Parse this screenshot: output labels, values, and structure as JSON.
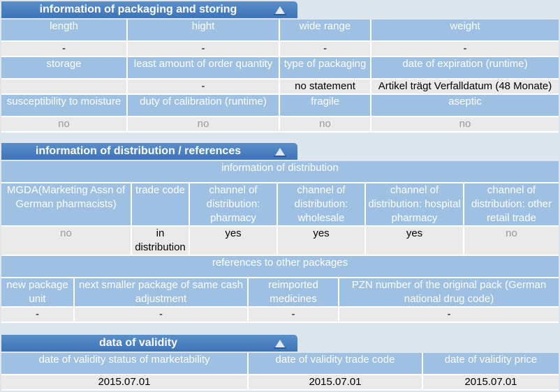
{
  "packaging": {
    "title": "information of packaging and storing",
    "row1_headers": [
      "length",
      "hight",
      "wide range",
      "weight"
    ],
    "row1_values": [
      "-",
      "-",
      "-",
      "-"
    ],
    "row2_headers": [
      "storage",
      "least amount of order quantity",
      "type of packaging",
      "date of expiration (runtime)"
    ],
    "row2_values": [
      "",
      "-",
      "no statement",
      "Artikel trägt Verfalldatum (48 Monate)"
    ],
    "row3_headers": [
      "susceptibility to moisture",
      "duty of calibration (runtime)",
      "fragile",
      "aseptic"
    ],
    "row3_values": [
      "no",
      "no",
      "no",
      "no"
    ]
  },
  "distribution": {
    "title": "information of distribution / references",
    "info_band": "information of distribution",
    "headers": [
      "MGDA(Marketing Assn of German pharmacists)",
      "trade code",
      "channel of distribution: pharmacy",
      "channel of distribution: wholesale",
      "channel of distribution: hospital pharmacy",
      "channel of distribution: other retail trade"
    ],
    "values": [
      "no",
      "in distribution",
      "yes",
      "yes",
      "yes",
      "no"
    ],
    "refs_band": "references to other packages",
    "ref_headers": [
      "new package unit",
      "next smaller package of same cash adjustment",
      "reimported medicines",
      "PZN number of the original pack (German national drug code)"
    ],
    "ref_values": [
      "-",
      "-",
      "-",
      "-"
    ]
  },
  "validity": {
    "title": "data of validity",
    "headers": [
      "date of validity status of marketability",
      "date of validity trade code",
      "date of validity price"
    ],
    "values": [
      "2015.07.01",
      "2015.07.01",
      "2015.07.01"
    ]
  },
  "icons": {
    "collapse": "collapse-arrow-icon"
  },
  "colors": {
    "header_tab": "#4a80c0",
    "cell_header": "#9ec0e2",
    "cell_value": "#eaeaea",
    "muted": "#999999"
  }
}
